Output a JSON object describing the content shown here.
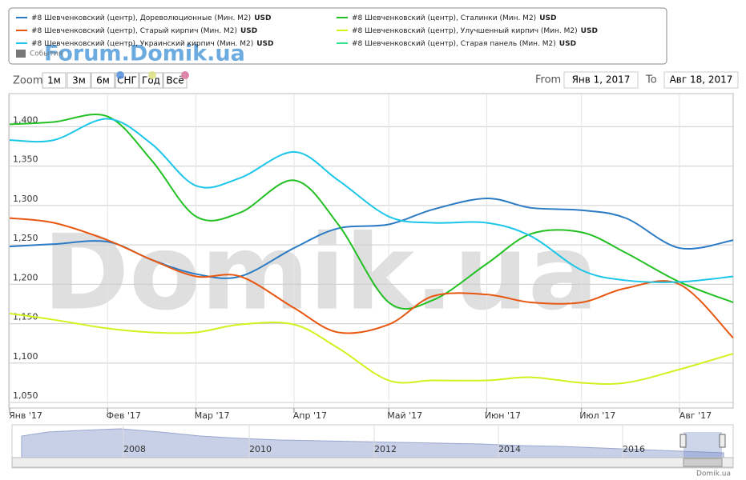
{
  "chart_data": {
    "type": "line",
    "legend_unit": "USD",
    "events_label": "События",
    "watermark": "Domik.ua",
    "forum_watermark": "Forum.Domik.ua",
    "credit": "Domik.ua",
    "zoom_label": "Zoom",
    "zoom_buttons": [
      "1м",
      "3м",
      "6м",
      "СНГ",
      "Год",
      "Всё"
    ],
    "from_label": "From",
    "from_value": "Янв 1, 2017",
    "to_label": "To",
    "to_value": "Авг 18, 2017",
    "navigator_labels": [
      "2008",
      "2010",
      "2012",
      "2014",
      "2016"
    ],
    "x": [
      "2017-01-01",
      "2017-01-15",
      "2017-02-01",
      "2017-02-15",
      "2017-03-01",
      "2017-03-15",
      "2017-04-01",
      "2017-04-15",
      "2017-05-01",
      "2017-05-15",
      "2017-06-01",
      "2017-06-15",
      "2017-07-01",
      "2017-07-15",
      "2017-08-01",
      "2017-08-18"
    ],
    "xlim": [
      "2017-01-01",
      "2017-08-18"
    ],
    "xticks": [
      {
        "value": "2017-01-01",
        "label": "Янв '17"
      },
      {
        "value": "2017-02-01",
        "label": "Фев '17"
      },
      {
        "value": "2017-03-01",
        "label": "Мар '17"
      },
      {
        "value": "2017-04-01",
        "label": "Апр '17"
      },
      {
        "value": "2017-05-01",
        "label": "Май '17"
      },
      {
        "value": "2017-06-01",
        "label": "Июн '17"
      },
      {
        "value": "2017-07-01",
        "label": "Июл '17"
      },
      {
        "value": "2017-08-01",
        "label": "Авг '17"
      }
    ],
    "ylim": [
      1043,
      1442
    ],
    "yticks": [
      {
        "value": 1050,
        "label": "1,050"
      },
      {
        "value": 1100,
        "label": "1,100"
      },
      {
        "value": 1150,
        "label": "1,150"
      },
      {
        "value": 1200,
        "label": "1,200"
      },
      {
        "value": 1250,
        "label": "1,250"
      },
      {
        "value": 1300,
        "label": "1,300"
      },
      {
        "value": 1350,
        "label": "1,350"
      },
      {
        "value": 1400,
        "label": "1,400"
      }
    ],
    "grid": true,
    "series": [
      {
        "name": "#8 Шевченковский (центр), Дореволюционные (Мин. M2)",
        "color": "#2b7bc4",
        "values": [
          1248,
          1251,
          1254,
          1231,
          1213,
          1210,
          1246,
          1271,
          1276,
          1295,
          1309,
          1297,
          1294,
          1284,
          1246,
          1256
        ]
      },
      {
        "name": "#8 Шевченковский (центр), Сталинки (Мин. M2)",
        "color": "#22c022",
        "values": [
          1403,
          1406,
          1413,
          1357,
          1286,
          1291,
          1332,
          1276,
          1177,
          1180,
          1226,
          1264,
          1266,
          1240,
          1203,
          1177
        ]
      },
      {
        "name": "#8 Шевченковский (центр), Старый кирпич (Мин. M2)",
        "color": "#e8560f",
        "values": [
          1284,
          1278,
          1256,
          1231,
          1210,
          1210,
          1170,
          1139,
          1149,
          1185,
          1187,
          1177,
          1177,
          1195,
          1200,
          1132
        ]
      },
      {
        "name": "#8 Шевченковский (центр), Улучшенный кирпич (Мин. M2)",
        "color": "#d4f01e",
        "values": [
          1163,
          1155,
          1144,
          1139,
          1139,
          1149,
          1149,
          1119,
          1078,
          1078,
          1078,
          1082,
          1075,
          1075,
          1092,
          1112
        ]
      },
      {
        "name": "#8 Шевченковский (центр), Украинский кирпич (Мин. M2)",
        "color": "#1cc6e8",
        "values": [
          1383,
          1383,
          1410,
          1378,
          1325,
          1335,
          1368,
          1332,
          1286,
          1278,
          1278,
          1261,
          1218,
          1205,
          1203,
          1210
        ]
      },
      {
        "name": "#8 Шевченковский (центр), Старая панель (Мин. M2)",
        "color": "#33e68a",
        "values": [
          null,
          null,
          null,
          null,
          null,
          null,
          null,
          null,
          null,
          null,
          null,
          null,
          null,
          null,
          null,
          null
        ]
      }
    ]
  }
}
